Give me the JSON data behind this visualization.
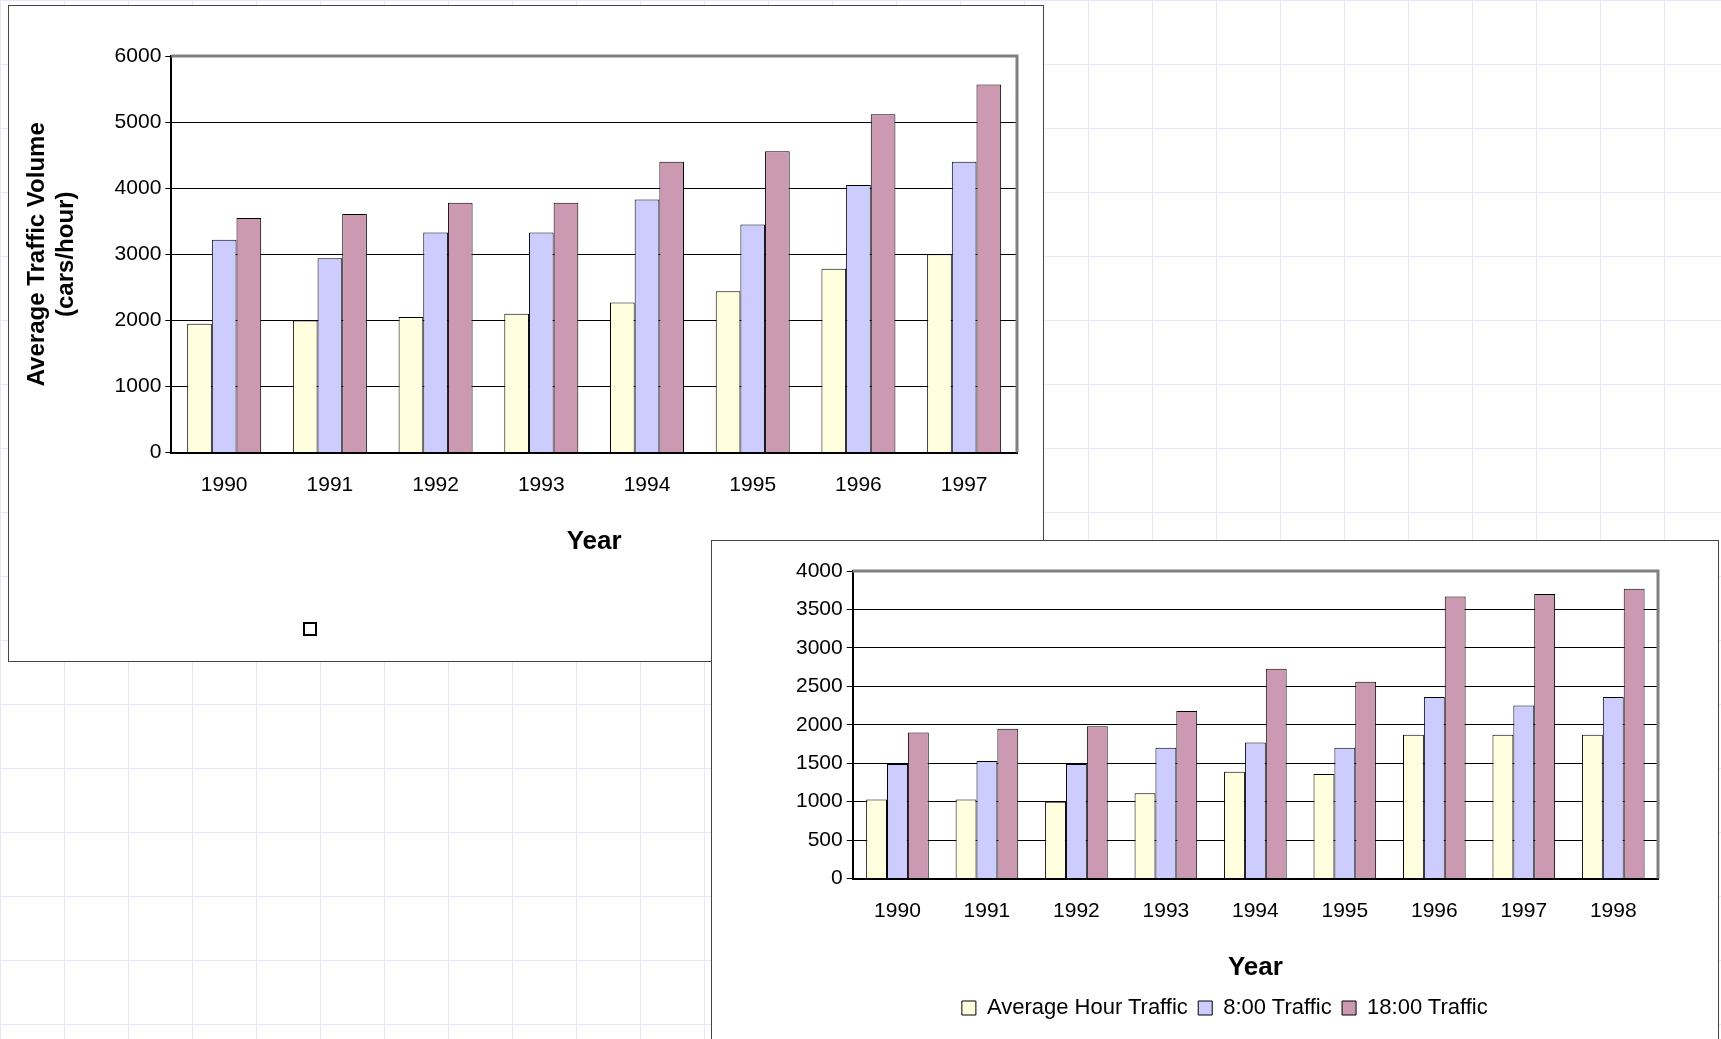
{
  "chart_data": [
    {
      "type": "bar",
      "xlabel": "Year",
      "ylabel": "Average Traffic Volume (cars/hour)",
      "categories": [
        "1990",
        "1991",
        "1992",
        "1993",
        "1994",
        "1995",
        "1996",
        "1997"
      ],
      "ylim": [
        0,
        6000
      ],
      "yticks": [
        0,
        1000,
        2000,
        3000,
        4000,
        5000,
        6000
      ],
      "grid": "y",
      "legend": false,
      "series": [
        {
          "color": "#ffffe0",
          "values": [
            1950,
            2000,
            2050,
            2100,
            2270,
            2440,
            2780,
            3000
          ]
        },
        {
          "color": "#ccccff",
          "values": [
            3220,
            2940,
            3330,
            3330,
            3830,
            3450,
            4050,
            4400
          ]
        },
        {
          "color": "#cc99b3",
          "values": [
            3550,
            3610,
            3780,
            3780,
            4400,
            4560,
            5120,
            5570
          ]
        }
      ]
    },
    {
      "type": "bar",
      "xlabel": "Year",
      "categories": [
        "1990",
        "1991",
        "1992",
        "1993",
        "1994",
        "1995",
        "1996",
        "1997",
        "1998"
      ],
      "ylim": [
        0,
        4000
      ],
      "yticks": [
        0,
        500,
        1000,
        1500,
        2000,
        2500,
        3000,
        3500,
        4000
      ],
      "grid": "y",
      "legend": "bottom",
      "series": [
        {
          "name": "Average Hour Traffic",
          "color": "#ffffe0",
          "values": [
            1030,
            1030,
            1000,
            1110,
            1390,
            1360,
            1870,
            1870,
            1870
          ]
        },
        {
          "name": "8:00 Traffic",
          "color": "#ccccff",
          "values": [
            1490,
            1530,
            1490,
            1700,
            1770,
            1700,
            2360,
            2250,
            2360
          ]
        },
        {
          "name": "18:00 Traffic",
          "color": "#cc99b3",
          "values": [
            1900,
            1950,
            1980,
            2180,
            2730,
            2560,
            3670,
            3700,
            3770
          ]
        }
      ]
    }
  ]
}
